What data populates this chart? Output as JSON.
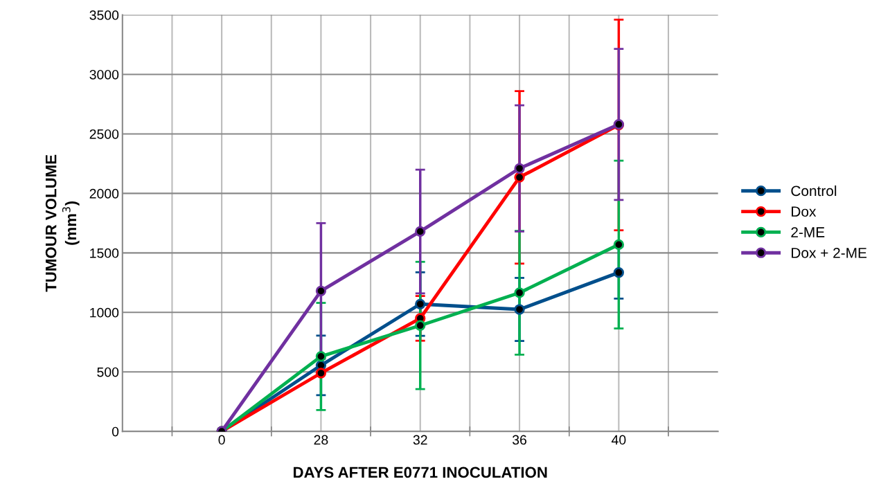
{
  "chart_data": {
    "type": "line",
    "xlabel": "DAYS AFTER E0771 INOCULATION",
    "ylabel": "TUMOUR VOLUME\n(mm$^{3}$)",
    "categories": [
      "0",
      "28",
      "32",
      "36",
      "40"
    ],
    "ylim": [
      0,
      3500
    ],
    "yticks": [
      0,
      500,
      1000,
      1500,
      2000,
      2500,
      3000,
      3500
    ],
    "grid": true,
    "legend": "right",
    "marker": "circle",
    "line_style": "solid",
    "series": [
      {
        "name": "Control",
        "color": "#004f8c",
        "values": [
          0,
          555,
          1070,
          1025,
          1335
        ],
        "errors": [
          null,
          250,
          267,
          265,
          219
        ]
      },
      {
        "name": "Dox",
        "color": "#ff0000",
        "values": [
          0,
          490,
          950,
          2135,
          2575
        ],
        "errors": [
          null,
          null,
          188,
          725,
          885
        ]
      },
      {
        "name": "2-ME",
        "color": "#00b050",
        "values": [
          0,
          630,
          890,
          1165,
          1570
        ],
        "errors": [
          null,
          450,
          535,
          520,
          705
        ]
      },
      {
        "name": "Dox + 2-ME",
        "color": "#7030a0",
        "values": [
          0,
          1180,
          1680,
          2210,
          2580
        ],
        "errors": [
          null,
          570,
          520,
          530,
          635
        ]
      }
    ]
  }
}
